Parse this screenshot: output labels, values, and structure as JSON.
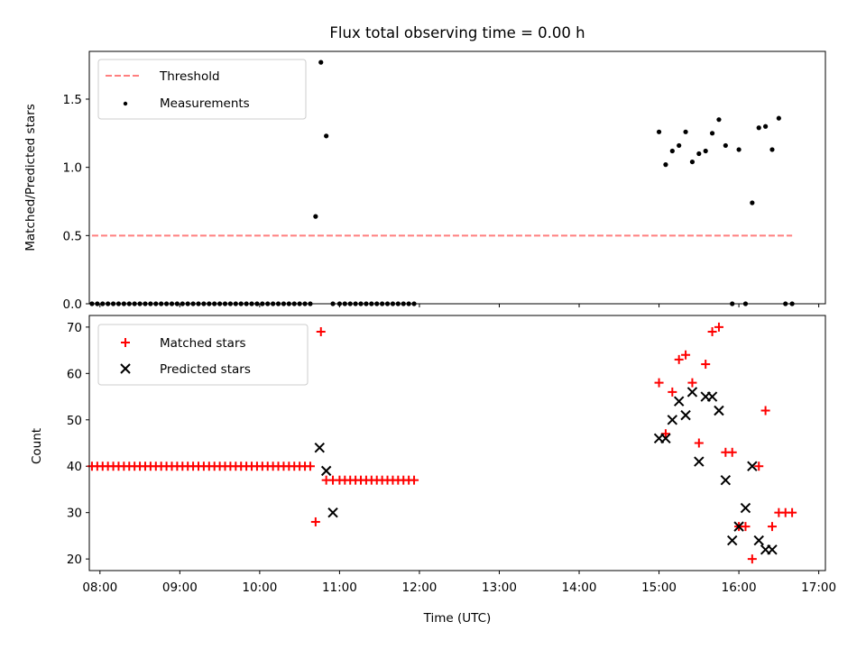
{
  "title": "Flux total observing time = 0.00 h",
  "chart_data": [
    {
      "type": "scatter",
      "ylabel": "Matched/Predicted stars",
      "ylim": [
        0,
        1.85
      ],
      "xlim": [
        "07:52",
        "17:05"
      ],
      "yticks": [
        "0.0",
        "0.5",
        "1.0",
        "1.5"
      ],
      "legend": "top-left",
      "series": [
        {
          "name": "Threshold",
          "style": "dashed-line",
          "color": "#ff7f7f",
          "x": [
            "07:54",
            "16:40"
          ],
          "y": [
            0.5,
            0.5
          ]
        },
        {
          "name": "Measurements",
          "style": "dot",
          "color": "#000000",
          "x": [
            "07:54",
            "07:58",
            "08:02",
            "08:06",
            "08:10",
            "08:14",
            "08:18",
            "08:22",
            "08:26",
            "08:30",
            "08:34",
            "08:38",
            "08:42",
            "08:46",
            "08:50",
            "08:54",
            "08:58",
            "09:02",
            "09:06",
            "09:10",
            "09:14",
            "09:18",
            "09:22",
            "09:26",
            "09:30",
            "09:34",
            "09:38",
            "09:42",
            "09:46",
            "09:50",
            "09:54",
            "09:58",
            "10:02",
            "10:06",
            "10:10",
            "10:14",
            "10:18",
            "10:22",
            "10:26",
            "10:30",
            "10:34",
            "10:38",
            "10:42",
            "10:46",
            "10:50",
            "10:55",
            "11:00",
            "11:04",
            "11:08",
            "11:12",
            "11:16",
            "11:20",
            "11:24",
            "11:28",
            "11:32",
            "11:36",
            "11:40",
            "11:44",
            "11:48",
            "11:52",
            "11:56",
            "15:00",
            "15:05",
            "15:10",
            "15:15",
            "15:20",
            "15:25",
            "15:30",
            "15:35",
            "15:40",
            "15:45",
            "15:50",
            "15:55",
            "16:00",
            "16:05",
            "16:10",
            "16:15",
            "16:20",
            "16:25",
            "16:30",
            "16:35",
            "16:40"
          ],
          "y": [
            0,
            0,
            0,
            0,
            0,
            0,
            0,
            0,
            0,
            0,
            0,
            0,
            0,
            0,
            0,
            0,
            0,
            0,
            0,
            0,
            0,
            0,
            0,
            0,
            0,
            0,
            0,
            0,
            0,
            0,
            0,
            0,
            0,
            0,
            0,
            0,
            0,
            0,
            0,
            0,
            0,
            0,
            0.64,
            1.77,
            1.23,
            0,
            0,
            0,
            0,
            0,
            0,
            0,
            0,
            0,
            0,
            0,
            0,
            0,
            0,
            0,
            0,
            1.26,
            1.02,
            1.12,
            1.16,
            1.26,
            1.04,
            1.1,
            1.12,
            1.25,
            1.35,
            1.16,
            0,
            1.13,
            0,
            0.74,
            1.29,
            1.3,
            1.13,
            1.36,
            0,
            0
          ]
        }
      ]
    },
    {
      "type": "scatter",
      "xlabel": "Time (UTC)",
      "ylabel": "Count",
      "ylim": [
        17.5,
        72.5
      ],
      "xlim": [
        "07:52",
        "17:05"
      ],
      "xticks": [
        "08:00",
        "09:00",
        "10:00",
        "11:00",
        "12:00",
        "13:00",
        "14:00",
        "15:00",
        "16:00",
        "17:00"
      ],
      "yticks": [
        "20",
        "30",
        "40",
        "50",
        "60",
        "70"
      ],
      "legend": "top-left",
      "series": [
        {
          "name": "Matched stars",
          "style": "plus",
          "color": "#ff0000",
          "x": [
            "07:54",
            "07:58",
            "08:02",
            "08:06",
            "08:10",
            "08:14",
            "08:18",
            "08:22",
            "08:26",
            "08:30",
            "08:34",
            "08:38",
            "08:42",
            "08:46",
            "08:50",
            "08:54",
            "08:58",
            "09:02",
            "09:06",
            "09:10",
            "09:14",
            "09:18",
            "09:22",
            "09:26",
            "09:30",
            "09:34",
            "09:38",
            "09:42",
            "09:46",
            "09:50",
            "09:54",
            "09:58",
            "10:02",
            "10:06",
            "10:10",
            "10:14",
            "10:18",
            "10:22",
            "10:26",
            "10:30",
            "10:34",
            "10:38",
            "10:42",
            "10:46",
            "10:50",
            "10:55",
            "11:00",
            "11:04",
            "11:08",
            "11:12",
            "11:16",
            "11:20",
            "11:24",
            "11:28",
            "11:32",
            "11:36",
            "11:40",
            "11:44",
            "11:48",
            "11:52",
            "11:56",
            "15:00",
            "15:05",
            "15:10",
            "15:15",
            "15:20",
            "15:25",
            "15:30",
            "15:35",
            "15:40",
            "15:45",
            "15:50",
            "15:55",
            "16:00",
            "16:05",
            "16:10",
            "16:15",
            "16:20",
            "16:25",
            "16:30",
            "16:35",
            "16:40"
          ],
          "y": [
            40,
            40,
            40,
            40,
            40,
            40,
            40,
            40,
            40,
            40,
            40,
            40,
            40,
            40,
            40,
            40,
            40,
            40,
            40,
            40,
            40,
            40,
            40,
            40,
            40,
            40,
            40,
            40,
            40,
            40,
            40,
            40,
            40,
            40,
            40,
            40,
            40,
            40,
            40,
            40,
            40,
            40,
            28,
            69,
            37,
            37,
            37,
            37,
            37,
            37,
            37,
            37,
            37,
            37,
            37,
            37,
            37,
            37,
            37,
            37,
            37,
            58,
            47,
            56,
            63,
            64,
            58,
            45,
            62,
            69,
            70,
            43,
            43,
            27,
            27,
            20,
            40,
            52,
            27,
            30,
            30,
            30
          ]
        },
        {
          "name": "Predicted stars",
          "style": "cross",
          "color": "#000000",
          "x": [
            "10:45",
            "10:50",
            "10:55",
            "15:00",
            "15:05",
            "15:10",
            "15:15",
            "15:20",
            "15:25",
            "15:30",
            "15:35",
            "15:40",
            "15:45",
            "15:50",
            "15:55",
            "16:00",
            "16:05",
            "16:10",
            "16:15",
            "16:20",
            "16:25"
          ],
          "y": [
            44,
            39,
            30,
            46,
            46,
            50,
            54,
            51,
            56,
            41,
            55,
            55,
            52,
            37,
            24,
            27,
            31,
            40,
            24,
            22,
            22
          ]
        }
      ]
    }
  ]
}
